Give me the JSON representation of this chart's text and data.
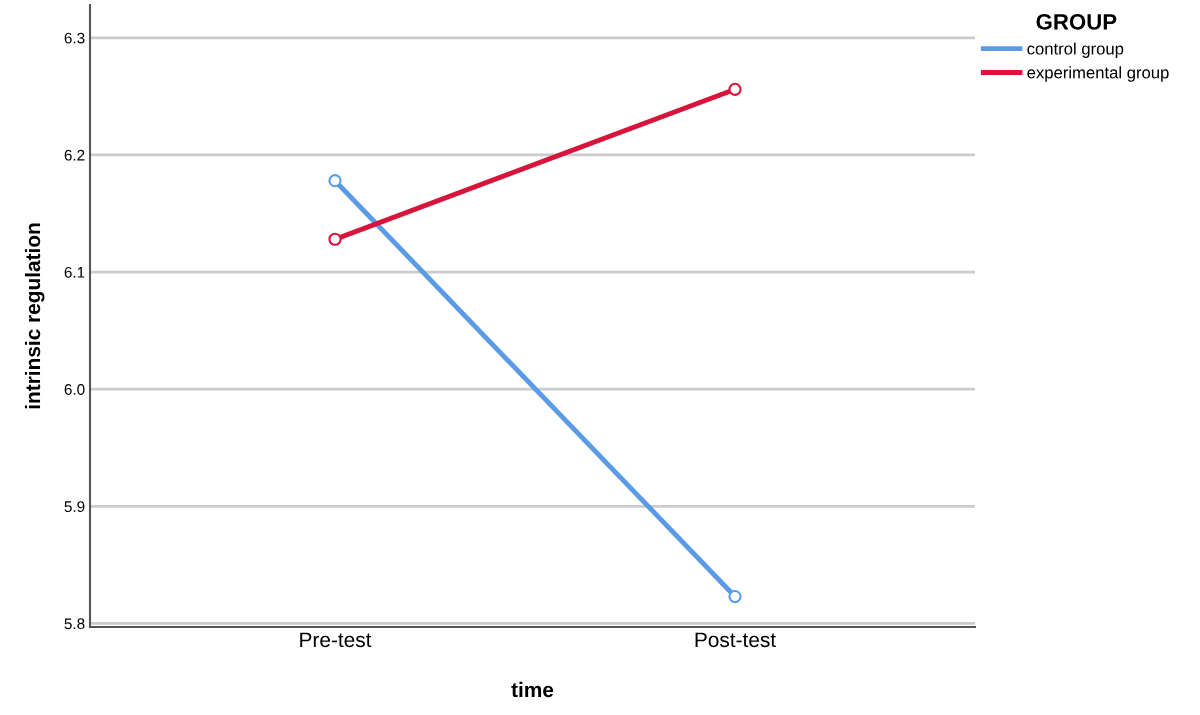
{
  "chart_data": {
    "type": "line",
    "xlabel": "time",
    "ylabel": "intrinsic regulation",
    "legend_title": "GROUP",
    "categories": [
      "Pre-test",
      "Post-test"
    ],
    "series": [
      {
        "name": "control group",
        "color": "#5b9be6",
        "values": [
          6.178,
          5.823
        ]
      },
      {
        "name": "experimental group",
        "color": "#d8143b",
        "values": [
          6.128,
          6.256
        ]
      }
    ],
    "ylim": [
      5.797,
      6.328
    ],
    "yticks": [
      5.8,
      5.9,
      {
        "value": 6.0,
        "label": "6.0"
      },
      6.1,
      6.2,
      6.3
    ],
    "grid": "y",
    "legend": "top right",
    "marker": "circle",
    "line_style": "solid"
  }
}
